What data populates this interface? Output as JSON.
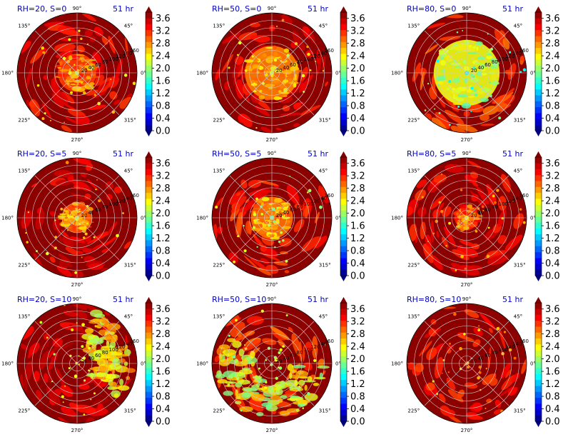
{
  "chart_data": {
    "type": "polar-filled-contour-grid",
    "rows": 3,
    "cols": 3,
    "colormap": "jet",
    "color_range": [
      0.0,
      3.8
    ],
    "colorbar_ticks": [
      "0.0",
      "0.4",
      "0.8",
      "1.2",
      "1.6",
      "2.0",
      "2.4",
      "2.8",
      "3.2",
      "3.6"
    ],
    "angle_ticks": [
      "0°",
      "45°",
      "90°",
      "135°",
      "180°",
      "225°",
      "270°",
      "315°"
    ],
    "panels": [
      {
        "left_title": "RH=20, S=0",
        "right_title": "51 hr",
        "radial_ticks": [
          "20",
          "40",
          "60",
          "80",
          "100",
          "120",
          "140",
          "160"
        ],
        "mean_level": 3.25,
        "core_radius": 0.32,
        "core_level": 2.8,
        "min_level": 2.2,
        "band_sector": null
      },
      {
        "left_title": "RH=50, S=0",
        "right_title": "51 hr",
        "radial_ticks": [
          "20",
          "40",
          "60",
          "80",
          "100",
          "120",
          "140",
          "160"
        ],
        "mean_level": 3.3,
        "core_radius": 0.45,
        "core_level": 2.55,
        "min_level": 2.2,
        "band_sector": null
      },
      {
        "left_title": "RH=80, S=0",
        "right_title": "51 hr",
        "radial_ticks": [
          "20",
          "40",
          "60",
          "80",
          "100",
          "120",
          "140",
          "160"
        ],
        "mean_level": 3.0,
        "core_radius": 0.55,
        "core_level": 2.0,
        "min_level": 1.4,
        "band_sector": null
      },
      {
        "left_title": "RH=20, S=5",
        "right_title": "51 hr",
        "radial_ticks": [
          "20",
          "40",
          "60",
          "80",
          "100",
          "120",
          "140",
          "160"
        ],
        "mean_level": 3.35,
        "core_radius": 0.25,
        "core_level": 2.7,
        "min_level": 2.2,
        "band_sector": null
      },
      {
        "left_title": "RH=50, S=5",
        "right_title": "51 hr",
        "radial_ticks": [
          "20",
          "40",
          "60",
          "80",
          "100",
          "120",
          "140",
          "160"
        ],
        "mean_level": 3.15,
        "core_radius": 0.35,
        "core_level": 2.6,
        "min_level": 1.8,
        "band_sector": null
      },
      {
        "left_title": "RH=80, S=5",
        "right_title": "51 hr",
        "radial_ticks": [
          "20",
          "40",
          "60",
          "80",
          "100",
          "120",
          "140",
          "160"
        ],
        "mean_level": 3.25,
        "core_radius": 0.2,
        "core_level": 2.9,
        "min_level": 2.4,
        "band_sector": null
      },
      {
        "left_title": "RH=20, S=10",
        "right_title": "51 hr",
        "radial_ticks": [
          "20",
          "40",
          "60",
          "80",
          "100",
          "120",
          "140",
          "160"
        ],
        "mean_level": 3.4,
        "core_radius": 0.0,
        "core_level": 3.4,
        "min_level": 2.0,
        "band_sector": [
          -40,
          70
        ]
      },
      {
        "left_title": "RH=50, S=10",
        "right_title": "51 hr",
        "radial_ticks": [
          "20",
          "40",
          "60",
          "80",
          "100",
          "120",
          "140",
          "160"
        ],
        "mean_level": 3.0,
        "core_radius": 0.0,
        "core_level": 3.0,
        "min_level": 1.8,
        "band_sector": [
          140,
          360
        ]
      },
      {
        "left_title": "RH=80, S=10",
        "right_title": "51 hr",
        "radial_ticks": [
          "20",
          "40",
          "60",
          "80",
          "100",
          "120",
          "140",
          "160"
        ],
        "mean_level": 3.2,
        "core_radius": 0.0,
        "core_level": 3.2,
        "min_level": 2.4,
        "band_sector": null
      }
    ]
  }
}
